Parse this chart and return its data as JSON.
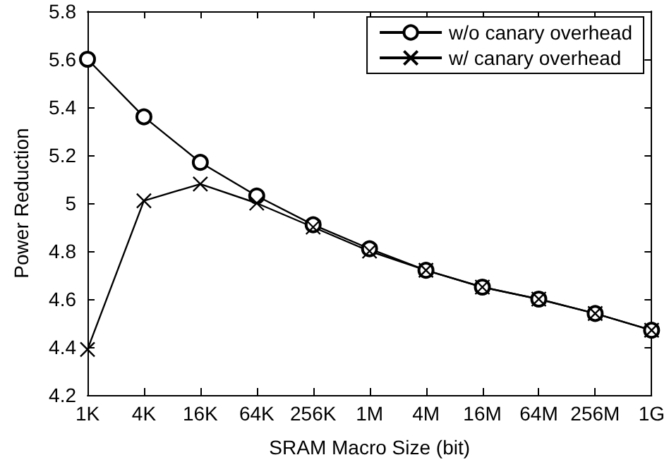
{
  "chart_data": {
    "type": "line",
    "xlabel": "SRAM Macro Size (bit)",
    "ylabel": "Power Reduction",
    "categories": [
      "1K",
      "4K",
      "16K",
      "64K",
      "256K",
      "1M",
      "4M",
      "16M",
      "64M",
      "256M",
      "1G"
    ],
    "series": [
      {
        "name": "w/o canary overhead",
        "color": "#000000",
        "marker": "circle",
        "values": [
          5.6,
          5.36,
          5.17,
          5.03,
          4.91,
          4.81,
          4.72,
          4.65,
          4.6,
          4.54,
          4.47
        ]
      },
      {
        "name": "w/ canary overhead",
        "color": "#000000",
        "marker": "cross",
        "values": [
          4.39,
          5.01,
          5.08,
          5.0,
          4.9,
          4.8,
          4.72,
          4.65,
          4.6,
          4.54,
          4.47
        ]
      }
    ],
    "ylim": [
      4.2,
      5.8
    ],
    "yticks": [
      4.2,
      4.4,
      4.6,
      4.8,
      5,
      5.2,
      5.4,
      5.6,
      5.8
    ],
    "grid": false,
    "legend": "top right",
    "line_style": "solid"
  }
}
